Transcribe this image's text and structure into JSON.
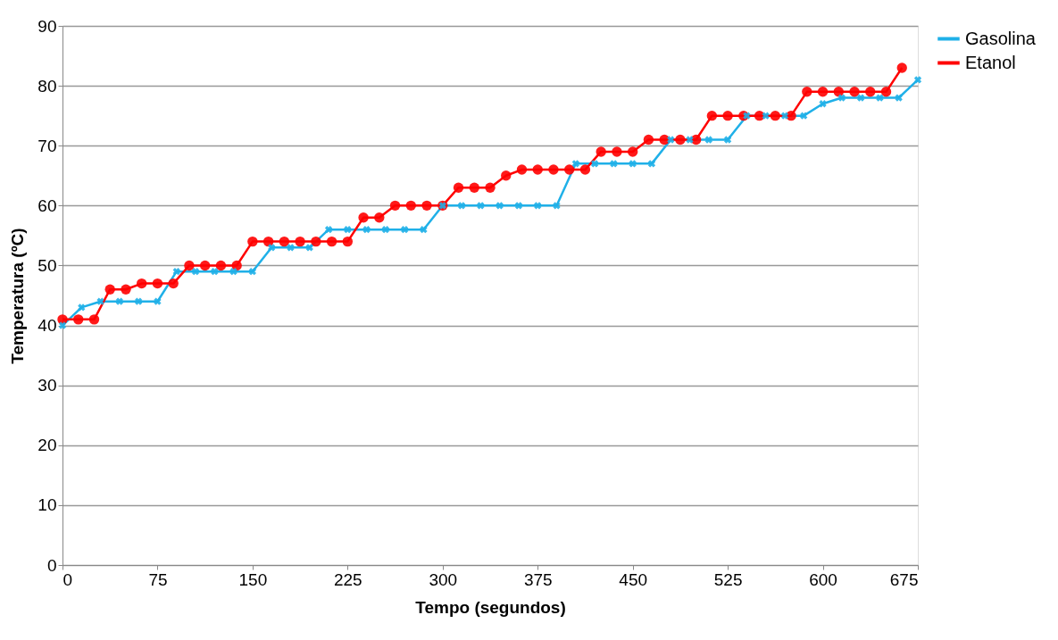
{
  "chart_data": {
    "type": "line",
    "xlabel": "Tempo (segundos)",
    "ylabel": "Temperatura (ºC)",
    "xlim": [
      0,
      675
    ],
    "xticks": [
      0,
      75,
      150,
      225,
      300,
      375,
      450,
      525,
      600,
      675
    ],
    "ylim": [
      0,
      90
    ],
    "yticks": [
      0,
      10,
      20,
      30,
      40,
      50,
      60,
      70,
      80,
      90
    ],
    "grid": "y",
    "legend": "right",
    "line_style": "solid",
    "series": [
      {
        "name": "Gasolina",
        "color": "#1fb0e8",
        "marker": "cross",
        "x": [
          0,
          15,
          30,
          45,
          60,
          75,
          90,
          105,
          120,
          135,
          150,
          165,
          180,
          195,
          210,
          225,
          240,
          255,
          270,
          285,
          300,
          315,
          330,
          345,
          360,
          375,
          390,
          405,
          420,
          435,
          450,
          465,
          480,
          495,
          510,
          525,
          540,
          555,
          570,
          585,
          600,
          615,
          630,
          645,
          660,
          675
        ],
        "values": [
          40,
          43,
          44,
          44,
          44,
          44,
          49,
          49,
          49,
          49,
          49,
          53,
          53,
          53,
          56,
          56,
          56,
          56,
          56,
          56,
          60,
          60,
          60,
          60,
          60,
          60,
          60,
          67,
          67,
          67,
          67,
          67,
          71,
          71,
          71,
          71,
          75,
          75,
          75,
          75,
          77,
          78,
          78,
          78,
          78,
          81
        ]
      },
      {
        "name": "Etanol",
        "color": "#ff0000",
        "marker": "circle",
        "x": [
          0,
          12.5,
          25,
          37.5,
          50,
          62.5,
          75,
          87.5,
          100,
          112.5,
          125,
          137.5,
          150,
          162.5,
          175,
          187.5,
          200,
          212.5,
          225,
          237.5,
          250,
          262.5,
          275,
          287.5,
          300,
          312.5,
          325,
          337.5,
          350,
          362.5,
          375,
          387.5,
          400,
          412.5,
          425,
          437.5,
          450,
          462.5,
          475,
          487.5,
          500,
          512.5,
          525,
          537.5,
          550,
          562.5,
          575,
          587.5,
          600,
          612.5,
          625,
          637.5,
          650,
          662.5
        ],
        "values": [
          41,
          41,
          41,
          46,
          46,
          47,
          47,
          47,
          50,
          50,
          50,
          50,
          54,
          54,
          54,
          54,
          54,
          54,
          54,
          58,
          58,
          60,
          60,
          60,
          60,
          63,
          63,
          63,
          65,
          66,
          66,
          66,
          66,
          66,
          69,
          69,
          69,
          71,
          71,
          71,
          71,
          75,
          75,
          75,
          75,
          75,
          75,
          79,
          79,
          79,
          79,
          79,
          79,
          83
        ]
      }
    ]
  }
}
